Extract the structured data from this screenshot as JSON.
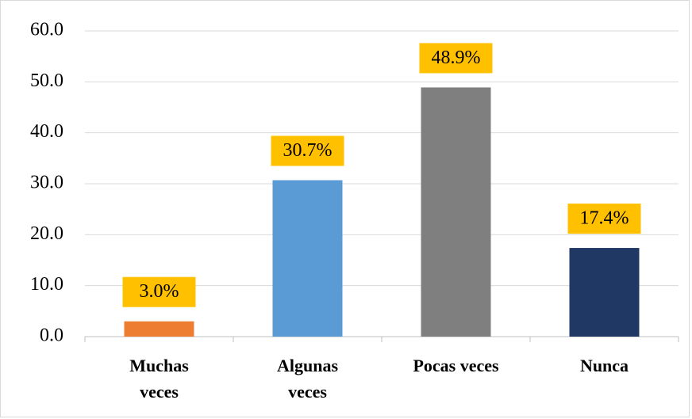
{
  "chart_data": {
    "type": "bar",
    "categories": [
      "Muchas veces",
      "Algunas veces",
      "Pocas veces",
      "Nunca"
    ],
    "values": [
      3.0,
      30.7,
      48.9,
      17.4
    ],
    "value_labels": [
      "3.0%",
      "30.7%",
      "48.9%",
      "17.4%"
    ],
    "colors": [
      "#ED7D31",
      "#5B9BD5",
      "#7F7F7F",
      "#203864"
    ],
    "label_background": "#FFC000",
    "ylim": [
      0,
      60
    ],
    "yticks": [
      {
        "value": 0,
        "label": "0.0"
      },
      {
        "value": 10,
        "label": "10.0"
      },
      {
        "value": 20,
        "label": "20.0"
      },
      {
        "value": 30,
        "label": "30.0"
      },
      {
        "value": 40,
        "label": "40.0"
      },
      {
        "value": 50,
        "label": "50.0"
      },
      {
        "value": 60,
        "label": "60.0"
      }
    ],
    "grid": true
  }
}
